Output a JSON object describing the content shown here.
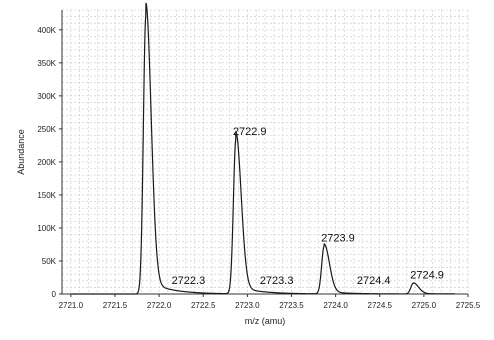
{
  "chart_data": {
    "type": "line",
    "title": "",
    "xlabel": "m/z (amu)",
    "ylabel": "Abundance",
    "xlim": [
      2720.9,
      2725.5
    ],
    "ylim": [
      0,
      430000
    ],
    "grid": true,
    "x_ticks": [
      "2721.0",
      "2721.5",
      "2722.0",
      "2722.5",
      "2723.0",
      "2723.5",
      "2724.0",
      "2724.5",
      "2725.0",
      "2725.5"
    ],
    "y_ticks": [
      "0",
      "50K",
      "100K",
      "150K",
      "200K",
      "250K",
      "300K",
      "350K",
      "400K"
    ],
    "y_tick_values": [
      0,
      50000,
      100000,
      150000,
      200000,
      250000,
      300000,
      350000,
      400000
    ],
    "x_tick_values": [
      2721.0,
      2721.5,
      2722.0,
      2722.5,
      2723.0,
      2723.5,
      2724.0,
      2724.5,
      2725.0,
      2725.5
    ],
    "peaks": [
      {
        "x": 2721.85,
        "y": 420000,
        "label": ""
      },
      {
        "x": 2722.87,
        "y": 233000,
        "label": "2722.9"
      },
      {
        "x": 2723.87,
        "y": 72000,
        "label": "2723.9"
      },
      {
        "x": 2724.88,
        "y": 16000,
        "label": "2724.9"
      }
    ],
    "annotations": [
      {
        "text": "2722.3",
        "x": 2722.3,
        "y": 12000
      },
      {
        "text": "2723.3",
        "x": 2723.3,
        "y": 12000
      },
      {
        "text": "2724.4",
        "x": 2724.4,
        "y": 12000
      }
    ]
  }
}
